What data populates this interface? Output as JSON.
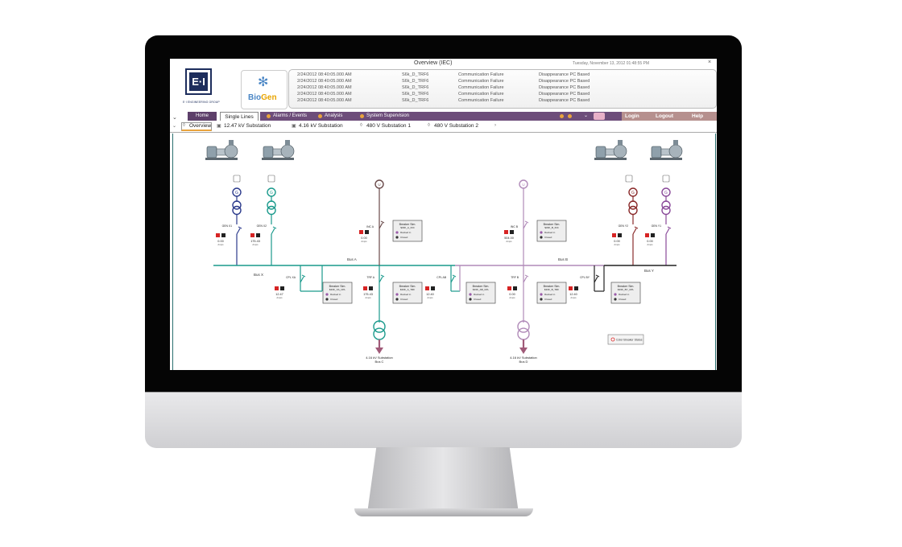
{
  "window": {
    "title": "Overview (IEC)",
    "datetime": "Tuesday, November 13, 2012 01:48:55 PM",
    "close": "×"
  },
  "logos": {
    "ei_mark": "E·I",
    "ei_name": "E·I ENGINEERING GROUP",
    "biogen_bio": "Bio",
    "biogen_gen": "Gen"
  },
  "alarms": [
    {
      "time": "2/24/2012 08:40:05.000 AM",
      "source": "S6k_D_TRF6",
      "type": "Communication Failure",
      "desc": "Disappearance PC Based"
    },
    {
      "time": "2/24/2012 08:40:05.000 AM",
      "source": "S6k_D_TRF6",
      "type": "Communication Failure",
      "desc": "Disappearance PC Based"
    },
    {
      "time": "2/24/2012 08:40:05.000 AM",
      "source": "S6k_D_TRF6",
      "type": "Communication Failure",
      "desc": "Disappearance PC Based"
    },
    {
      "time": "2/24/2012 08:40:05.000 AM",
      "source": "S6k_D_TRF6",
      "type": "Communication Failure",
      "desc": "Disappearance PC Based"
    },
    {
      "time": "2/24/2012 08:40:05.000 AM",
      "source": "S6k_D_TRF6",
      "type": "Communication Failure",
      "desc": "Disappearance PC Based"
    }
  ],
  "tabs": {
    "home": "Home",
    "single_lines": "Single Lines",
    "alarms": "Alarms / Events",
    "analysis": "Analysis",
    "system": "System Supervision",
    "login": "Login",
    "logout": "Logout",
    "help": "Help"
  },
  "subtabs": {
    "overview": "Overview",
    "s1": "12.47 kV Substation",
    "s2": "4.16 kV Substation",
    "s3": "480 V Substation 1",
    "s4": "480 V Substation 2"
  },
  "diagram": {
    "bus_x": "Bus X",
    "bus_a": "Bus A",
    "bus_b": "Bus B",
    "bus_y": "Bus Y",
    "sub_c_1": "4.16 kV Substation",
    "sub_c_2": "Bus C",
    "sub_d_1": "4.16 kV Substation",
    "sub_d_2": "Bus D",
    "legend": "Color Breaker Status",
    "gen_x1": "GEN X1",
    "gen_x2": "GEN X2",
    "gen_y2": "GEN Y2",
    "gen_y1": "GEN Y1",
    "inc_a": "INC A",
    "inc_b": "INC B",
    "cpl_xa": "CPL XA",
    "trf_a": "TRF A",
    "cpl_ab": "CPL AB",
    "trf_b": "TRF B",
    "cpl_by": "CPL BY",
    "val_x1": "0.00",
    "val_x2": "175.43",
    "val_y2": "0.00",
    "val_y1": "0.00",
    "val_inc_a": "0.00",
    "val_inc_b": "504.00",
    "val_cpl_xa": "12.47",
    "val_trf_a": "175.43",
    "val_cpl_ab": "12.40",
    "val_trf_b": "0.00",
    "val_cpl_by": "12.40",
    "unit": "Amps",
    "brk_inc_a": "Breaker Sim.\n$33K_A_INC",
    "brk_inc_b": "Breaker Sim.\n$33K_B_INC",
    "brk_cpl_xa": "Breaker Sim.\n$33K_XA_CPL",
    "brk_trf_a": "Breaker Sim.\n$33K_A_TRF",
    "brk_cpl_ab": "Breaker Sim.\n$33K_AB_CPL",
    "brk_trf_b": "Breaker Sim.\n$33K_B_TRF",
    "brk_cpl_by": "Breaker Sim.\n$33K_BY_CPL",
    "racked": "Racked in",
    "closed": "Closed"
  },
  "colors": {
    "purple_tab": "#6d4d7a",
    "blue_gen": "#2b3a8c",
    "teal": "#1a9a8c",
    "brown": "#6a4a4a",
    "mauve": "#b08ab8",
    "maroon": "#8a2a2a",
    "violet": "#8a4a9a",
    "black_bus": "#222222"
  }
}
